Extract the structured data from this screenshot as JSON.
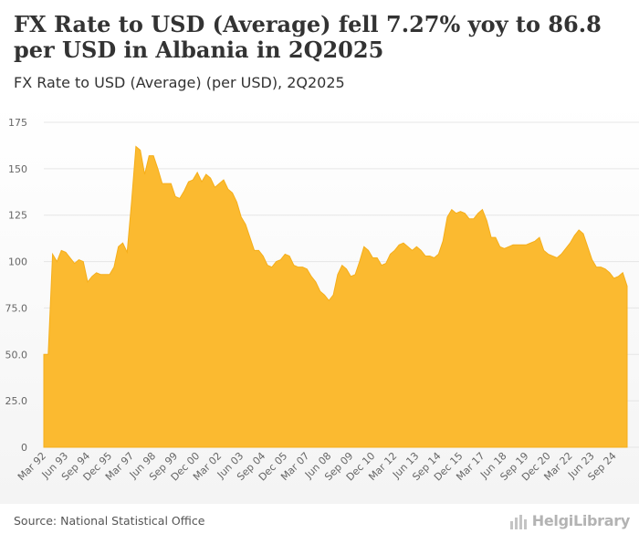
{
  "header": {
    "title": "FX Rate to USD (Average) fell 7.27% yoy to 86.8 per USD in Albania in 2Q2025",
    "subtitle": "FX Rate to USD (Average) (per USD), 2Q2025"
  },
  "footer": {
    "source": "Source: National Statistical Office",
    "brand": "HelgiLibrary"
  },
  "colors": {
    "fill": "#FBBA30",
    "stroke": "#F5AE1A",
    "grid": "#e6e6e6",
    "axis_text": "#666666"
  },
  "chart_data": {
    "type": "area",
    "title": "FX Rate to USD (Average) fell 7.27% yoy to 86.8 per USD in Albania in 2Q2025",
    "subtitle": "FX Rate to USD (Average) (per USD), 2Q2025",
    "xlabel": "",
    "ylabel": "",
    "ylim": [
      0,
      175
    ],
    "yticks": [
      0,
      25,
      50,
      75,
      100,
      125,
      150,
      175
    ],
    "ytick_labels": [
      "0",
      "25.0",
      "50.0",
      "75.0",
      "100",
      "125",
      "150",
      "175"
    ],
    "xtick_labels": [
      "Mar 92",
      "Jun 93",
      "Sep 94",
      "Dec 95",
      "Mar 97",
      "Jun 98",
      "Sep 99",
      "Dec 00",
      "Mar 02",
      "Jun 03",
      "Sep 04",
      "Dec 05",
      "Mar 07",
      "Jun 08",
      "Sep 09",
      "Dec 10",
      "Mar 12",
      "Jun 13",
      "Sep 14",
      "Dec 15",
      "Mar 17",
      "Jun 18",
      "Sep 19",
      "Dec 20",
      "Mar 22",
      "Jun 23",
      "Sep 24"
    ],
    "xtick_step": 5,
    "grid": true,
    "legend": "none",
    "series": [
      {
        "name": "FX Rate to USD (Average)",
        "values": [
          50,
          50,
          104,
          100,
          106,
          105,
          102,
          99,
          101,
          100,
          89,
          92,
          94,
          93,
          93,
          93,
          97,
          108,
          110,
          105,
          132,
          162,
          160,
          147,
          157,
          157,
          150,
          142,
          142,
          142,
          135,
          134,
          138,
          143,
          144,
          148,
          143,
          147,
          145,
          140,
          142,
          144,
          139,
          137,
          132,
          124,
          120,
          113,
          106,
          106,
          103,
          98,
          97,
          100,
          101,
          104,
          103,
          98,
          97,
          97,
          96,
          92,
          89,
          84,
          82,
          79,
          82,
          93,
          98,
          96,
          92,
          93,
          100,
          108,
          106,
          102,
          102,
          98,
          99,
          104,
          106,
          109,
          110,
          108,
          106,
          108,
          106,
          103,
          103,
          102,
          104,
          111,
          124,
          128,
          126,
          127,
          126,
          123,
          123,
          126,
          128,
          122,
          113,
          113,
          108,
          107,
          108,
          109,
          109,
          109,
          109,
          110,
          111,
          113,
          106,
          104,
          103,
          102,
          104,
          107,
          110,
          114,
          117,
          115,
          108,
          101,
          97,
          97,
          96,
          94,
          91,
          92,
          94,
          86.8
        ]
      }
    ]
  }
}
